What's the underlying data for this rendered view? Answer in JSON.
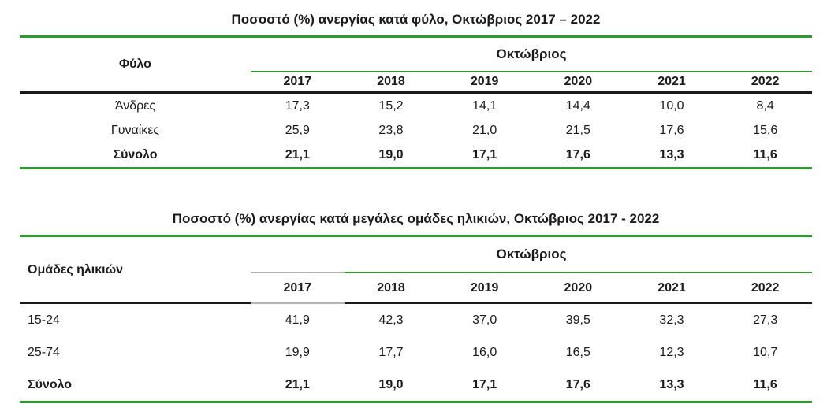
{
  "colors": {
    "accent_green": "#2e9b2e",
    "line_dark": "#1a1a1a",
    "line_gray": "#b3b3b3",
    "text": "#1a1a1a",
    "background": "#ffffff"
  },
  "table1": {
    "title": "Ποσοστό (%) ανεργίας κατά φύλο, Οκτώβριος 2017 – 2022",
    "col_header": "Φύλο",
    "group_header": "Οκτώβριος",
    "years": [
      "2017",
      "2018",
      "2019",
      "2020",
      "2021",
      "2022"
    ],
    "rows": [
      {
        "label": "Άνδρες",
        "values": [
          "17,3",
          "15,2",
          "14,1",
          "14,4",
          "10,0",
          "8,4"
        ]
      },
      {
        "label": "Γυναίκες",
        "values": [
          "25,9",
          "23,8",
          "21,0",
          "21,5",
          "17,6",
          "15,6"
        ]
      },
      {
        "label": "Σύνολο",
        "values": [
          "21,1",
          "19,0",
          "17,1",
          "17,6",
          "13,3",
          "11,6"
        ]
      }
    ]
  },
  "table2": {
    "title": "Ποσοστό (%) ανεργίας κατά μεγάλες ομάδες ηλικιών, Οκτώβριος 2017 - 2022",
    "col_header": "Ομάδες ηλικιών",
    "group_header": "Οκτώβριος",
    "years": [
      "2017",
      "2018",
      "2019",
      "2020",
      "2021",
      "2022"
    ],
    "rows": [
      {
        "label": "15-24",
        "values": [
          "41,9",
          "42,3",
          "37,0",
          "39,5",
          "32,3",
          "27,3"
        ]
      },
      {
        "label": "25-74",
        "values": [
          "19,9",
          "17,7",
          "16,0",
          "16,5",
          "12,3",
          "10,7"
        ]
      },
      {
        "label": "Σύνολο",
        "values": [
          "21,1",
          "19,0",
          "17,1",
          "17,6",
          "13,3",
          "11,6"
        ]
      }
    ]
  }
}
